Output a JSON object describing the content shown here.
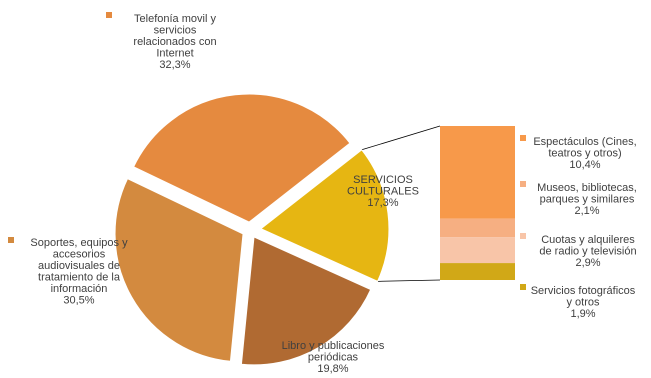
{
  "chart_data": [
    {
      "type": "pie",
      "slices": [
        {
          "key": "telefonia",
          "label_lines": [
            "Telefonía movil y",
            "servicios",
            "relacionados con",
            "Internet"
          ],
          "value_label": "32,3%",
          "value": 32.3,
          "color": "#E58A3F"
        },
        {
          "key": "servicios_culturales",
          "label_lines": [
            "SERVICIOS",
            "CULTURALES"
          ],
          "value_label": "17,3%",
          "value": 17.3,
          "color": "#E6B612"
        },
        {
          "key": "libro",
          "label_lines": [
            "Libro y publicaciones",
            "periódicas"
          ],
          "value_label": "19,8%",
          "value": 19.8,
          "color": "#B06A32"
        },
        {
          "key": "soportes",
          "label_lines": [
            "Soportes, equipos y",
            "accesorios",
            "audiovisuales de",
            "tratamiento de la",
            "información"
          ],
          "value_label": "30,5%",
          "value": 30.5,
          "color": "#D38A3F"
        }
      ]
    },
    {
      "type": "bar",
      "stacked": true,
      "segments": [
        {
          "key": "espectaculos",
          "label_lines": [
            "Espectáculos (Cines,",
            "teatros y otros)"
          ],
          "value_label": "10,4%",
          "value": 10.4,
          "color": "#F7994A"
        },
        {
          "key": "museos",
          "label_lines": [
            "Museos, bibliotecas,",
            "parques y similares"
          ],
          "value_label": "2,1%",
          "value": 2.1,
          "color": "#F6AF82"
        },
        {
          "key": "cuotas",
          "label_lines": [
            "Cuotas y alquileres",
            "de radio y televisión"
          ],
          "value_label": "2,9%",
          "value": 2.9,
          "color": "#F8C5A8"
        },
        {
          "key": "fotograficos",
          "label_lines": [
            "Servicios fotográficos",
            "y otros"
          ],
          "value_label": "1,9%",
          "value": 1.9,
          "color": "#D1A817"
        }
      ]
    }
  ]
}
